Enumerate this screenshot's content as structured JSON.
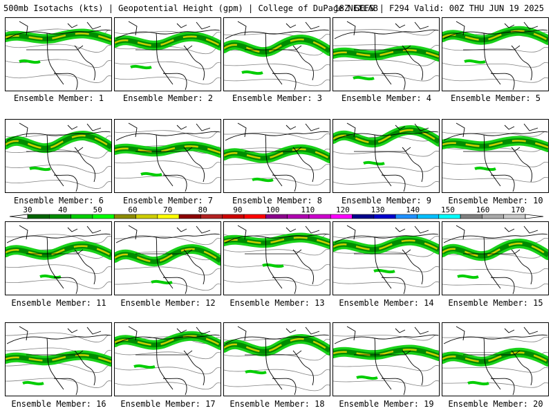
{
  "header": {
    "left": "500mb Isotachs (kts) | Geopotential Height (gpm) | College of DuPage NEXLAB",
    "right": "18Z GEFS | F294 Valid: 00Z THU JUN 19 2025"
  },
  "panels": [
    {
      "label": "Ensemble Member: 1"
    },
    {
      "label": "Ensemble Member: 2"
    },
    {
      "label": "Ensemble Member: 3"
    },
    {
      "label": "Ensemble Member: 4"
    },
    {
      "label": "Ensemble Member: 5"
    },
    {
      "label": "Ensemble Member: 6"
    },
    {
      "label": "Ensemble Member: 7"
    },
    {
      "label": "Ensemble Member: 8"
    },
    {
      "label": "Ensemble Member: 9"
    },
    {
      "label": "Ensemble Member: 10"
    },
    {
      "label": "Ensemble Member: 11"
    },
    {
      "label": "Ensemble Member: 12"
    },
    {
      "label": "Ensemble Member: 13"
    },
    {
      "label": "Ensemble Member: 14"
    },
    {
      "label": "Ensemble Member: 15"
    },
    {
      "label": "Ensemble Member: 16"
    },
    {
      "label": "Ensemble Member: 17"
    },
    {
      "label": "Ensemble Member: 18"
    },
    {
      "label": "Ensemble Member: 19"
    },
    {
      "label": "Ensemble Member: 20"
    }
  ],
  "colorbar": {
    "labels": [
      "30",
      "40",
      "50",
      "60",
      "70",
      "80",
      "90",
      "100",
      "110",
      "120",
      "130",
      "140",
      "150",
      "160",
      "170"
    ],
    "colors": [
      "#006400",
      "#008b00",
      "#00cd00",
      "#00ff00",
      "#8b8b00",
      "#cdcd00",
      "#ffff00",
      "#8b0000",
      "#b22222",
      "#cd0000",
      "#ff0000",
      "#8b008b",
      "#b000b0",
      "#cd00cd",
      "#ff00ff",
      "#00008b",
      "#0000cd",
      "#1e90ff",
      "#00bfff",
      "#00ffff",
      "#808080",
      "#a9a9a9",
      "#c8c8c8"
    ]
  }
}
